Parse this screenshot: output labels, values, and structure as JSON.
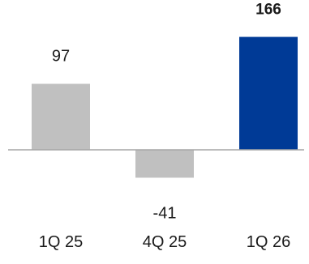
{
  "chart_data": {
    "type": "bar",
    "categories": [
      "1Q 25",
      "4Q 25",
      "1Q 26"
    ],
    "values": [
      97,
      -41,
      166
    ],
    "value_labels": [
      "97",
      "-41",
      "166"
    ],
    "highlight_index": 2,
    "colors": {
      "bar": "#c0c0c0",
      "highlight": "#003a96",
      "baseline": "#a6a6a6",
      "text": "#1a1a1a"
    },
    "grid": false,
    "legend": "none"
  }
}
